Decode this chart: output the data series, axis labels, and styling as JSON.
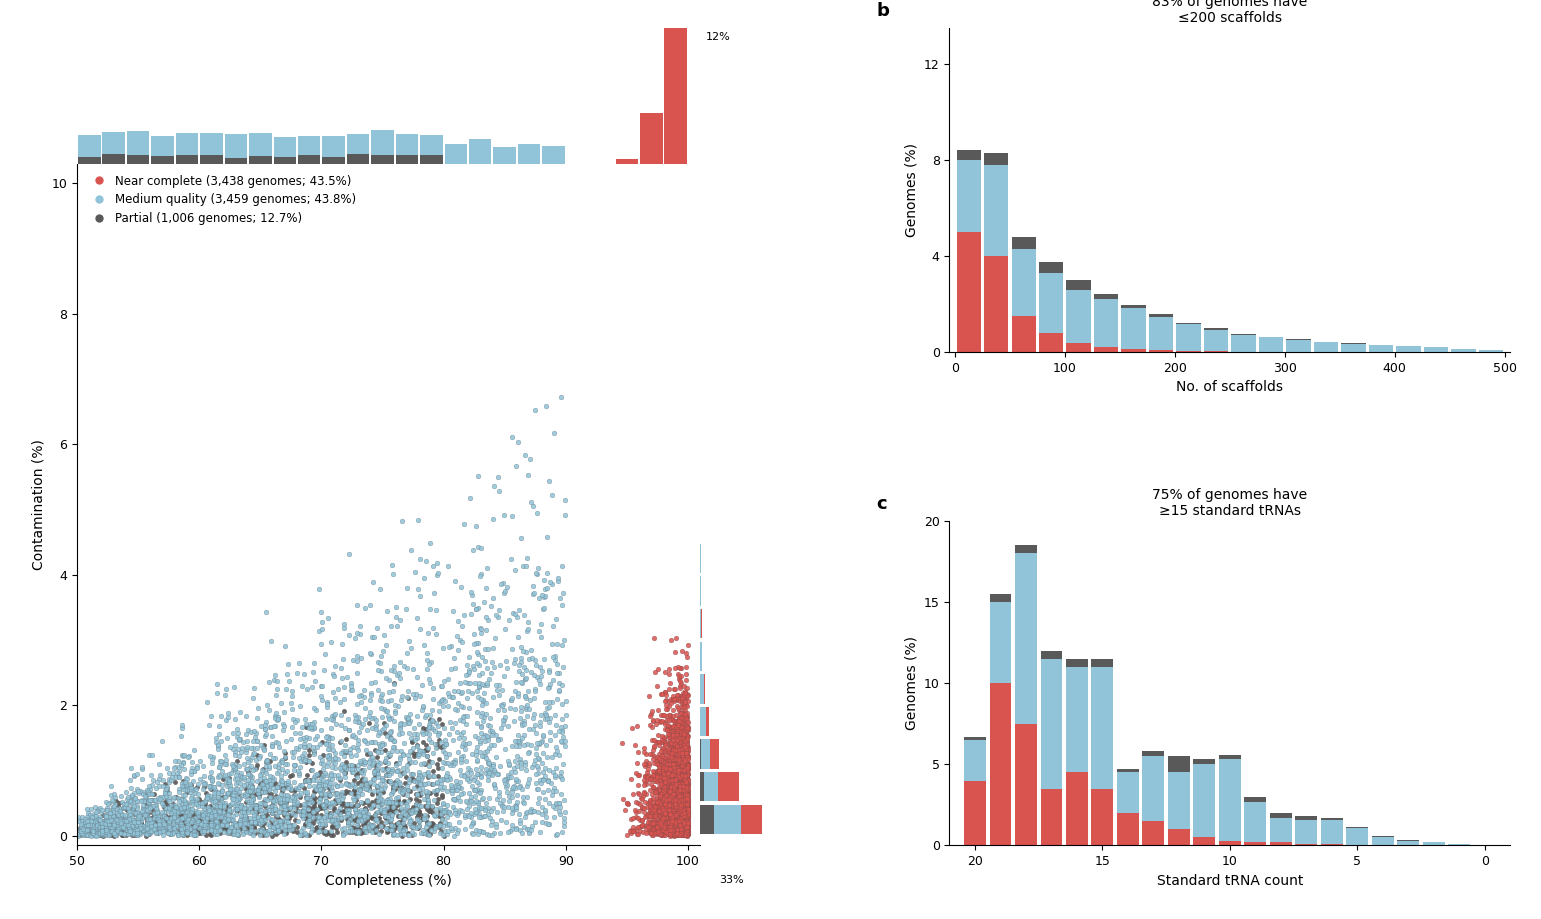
{
  "colors": {
    "near_complete": "#d9534f",
    "medium_quality": "#91c4d9",
    "partial": "#595959"
  },
  "legend_labels": [
    "Near complete (3,438 genomes; 43.5%)",
    "Medium quality (3,459 genomes; 43.8%)",
    "Partial (1,006 genomes; 12.7%)"
  ],
  "scatter": {
    "near_complete_n": 3438,
    "medium_quality_n": 3459,
    "partial_n": 1006
  },
  "panel_b": {
    "title": "83% of genomes have\n≤200 scaffolds",
    "xlabel": "No. of scaffolds",
    "ylabel": "Genomes (%)",
    "near_complete": [
      5.0,
      4.0,
      1.5,
      0.8,
      0.4,
      0.2,
      0.12,
      0.08,
      0.05,
      0.03,
      0.02,
      0.01,
      0.01,
      0.005,
      0.003,
      0.002,
      0.001,
      0.001,
      0.0,
      0.0
    ],
    "medium_quality": [
      3.0,
      3.8,
      2.8,
      2.5,
      2.2,
      2.0,
      1.7,
      1.4,
      1.1,
      0.9,
      0.7,
      0.6,
      0.5,
      0.4,
      0.35,
      0.3,
      0.25,
      0.2,
      0.15,
      0.1
    ],
    "partial": [
      0.4,
      0.5,
      0.5,
      0.45,
      0.4,
      0.2,
      0.15,
      0.1,
      0.08,
      0.06,
      0.05,
      0.03,
      0.02,
      0.01,
      0.01,
      0.01,
      0.0,
      0.0,
      0.0,
      0.0
    ]
  },
  "panel_c": {
    "title": "75% of genomes have\n≥15 standard tRNAs",
    "xlabel": "Standard tRNA count",
    "ylabel": "Genomes (%)",
    "bins_centers": [
      20,
      19,
      18,
      17,
      16,
      15,
      14,
      13,
      12,
      11,
      10,
      9,
      8,
      7,
      6,
      5,
      4,
      3,
      2,
      1
    ],
    "near_complete": [
      4.0,
      10.0,
      7.5,
      3.5,
      4.5,
      3.5,
      2.0,
      1.5,
      1.0,
      0.5,
      0.3,
      0.2,
      0.2,
      0.1,
      0.1,
      0.05,
      0.0,
      0.0,
      0.0,
      0.0
    ],
    "medium_quality": [
      2.5,
      5.0,
      10.5,
      8.0,
      6.5,
      7.5,
      2.5,
      4.0,
      3.5,
      4.5,
      5.0,
      2.5,
      1.5,
      1.5,
      1.5,
      1.0,
      0.5,
      0.3,
      0.2,
      0.1
    ],
    "partial": [
      0.2,
      0.5,
      0.5,
      0.5,
      0.5,
      0.5,
      0.2,
      0.3,
      1.0,
      0.3,
      0.3,
      0.3,
      0.3,
      0.2,
      0.1,
      0.1,
      0.1,
      0.05,
      0.0,
      0.0
    ]
  }
}
